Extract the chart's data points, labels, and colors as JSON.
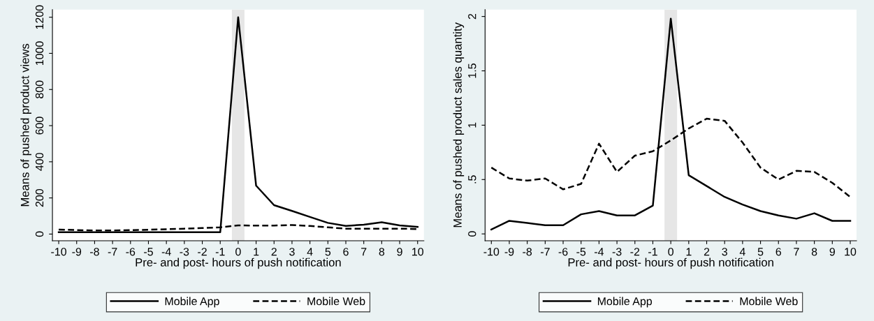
{
  "chart_data": [
    {
      "type": "line",
      "xlabel": "Pre- and post- hours of push notification",
      "ylabel": "Means of pushed product views",
      "x": [
        -10,
        -9,
        -8,
        -7,
        -6,
        -5,
        -4,
        -3,
        -2,
        -1,
        0,
        1,
        2,
        3,
        4,
        5,
        6,
        7,
        8,
        9,
        10
      ],
      "series": [
        {
          "name": "Mobile App",
          "color": "#000000",
          "line_style": "solid",
          "values": [
            10,
            10,
            10,
            10,
            10,
            10,
            10,
            10,
            10,
            10,
            1200,
            268,
            160,
            128,
            95,
            62,
            45,
            52,
            65,
            48,
            40
          ]
        },
        {
          "name": "Mobile Web",
          "color": "#000000",
          "line_style": "dashed",
          "values": [
            25,
            22,
            20,
            20,
            22,
            24,
            27,
            30,
            33,
            37,
            48,
            47,
            47,
            50,
            45,
            37,
            30,
            30,
            30,
            30,
            28
          ]
        }
      ],
      "xlim": [
        -10.35,
        10.35
      ],
      "xticks": [
        -10,
        -9,
        -8,
        -7,
        -6,
        -5,
        -4,
        -3,
        -2,
        -1,
        0,
        1,
        2,
        3,
        4,
        5,
        6,
        7,
        8,
        9,
        10
      ],
      "ylim": [
        -37,
        1242
      ],
      "yticks": [
        0,
        200,
        400,
        600,
        800,
        1000,
        1200
      ],
      "bands": [
        {
          "axis": "x",
          "from": -0.35,
          "to": 0.35,
          "color": "#e6e6e6"
        }
      ],
      "grid": false,
      "legend": "bottom",
      "marker": "none"
    },
    {
      "type": "line",
      "xlabel": "Pre- and post- hours of push notification",
      "ylabel": "Means of pushed product sales quantity",
      "x": [
        -10,
        -9,
        -8,
        -7,
        -6,
        -5,
        -4,
        -3,
        -2,
        -1,
        0,
        1,
        2,
        3,
        4,
        5,
        6,
        7,
        8,
        9,
        10
      ],
      "series": [
        {
          "name": "Mobile App",
          "color": "#000000",
          "line_style": "solid",
          "values": [
            0.04,
            0.12,
            0.1,
            0.08,
            0.08,
            0.18,
            0.21,
            0.17,
            0.17,
            0.26,
            1.98,
            0.54,
            0.44,
            0.34,
            0.27,
            0.21,
            0.17,
            0.14,
            0.19,
            0.12,
            0.12
          ]
        },
        {
          "name": "Mobile Web",
          "color": "#000000",
          "line_style": "dashed",
          "values": [
            0.61,
            0.51,
            0.49,
            0.51,
            0.41,
            0.46,
            0.83,
            0.57,
            0.72,
            0.76,
            0.86,
            0.97,
            1.06,
            1.04,
            0.84,
            0.61,
            0.5,
            0.58,
            0.57,
            0.47,
            0.34
          ]
        }
      ],
      "xlim": [
        -10.35,
        10.35
      ],
      "xticks": [
        -10,
        -9,
        -8,
        -7,
        -6,
        -5,
        -4,
        -3,
        -2,
        -1,
        0,
        1,
        2,
        3,
        4,
        5,
        6,
        7,
        8,
        9,
        10
      ],
      "ylim": [
        -0.063,
        2.063
      ],
      "yticks": [
        0,
        {
          "value": 0.5,
          "label": ".5"
        },
        1,
        1.5,
        2
      ],
      "bands": [
        {
          "axis": "x",
          "from": -0.35,
          "to": 0.35,
          "color": "#e6e6e6"
        }
      ],
      "grid": false,
      "legend": "bottom",
      "marker": "none"
    }
  ]
}
